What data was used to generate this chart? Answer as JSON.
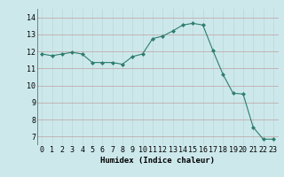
{
  "x": [
    0,
    1,
    2,
    3,
    4,
    5,
    6,
    7,
    8,
    9,
    10,
    11,
    12,
    13,
    14,
    15,
    16,
    17,
    18,
    19,
    20,
    21,
    22,
    23
  ],
  "y": [
    11.85,
    11.75,
    11.85,
    11.95,
    11.85,
    11.35,
    11.35,
    11.35,
    11.25,
    11.7,
    11.85,
    12.75,
    12.9,
    13.2,
    13.55,
    13.65,
    13.55,
    12.05,
    10.65,
    9.55,
    9.5,
    7.55,
    6.85,
    6.85
  ],
  "line_color": "#2e7d6e",
  "marker": "D",
  "marker_size": 2,
  "bg_color": "#cce8eb",
  "grid_color_h": "#c0a0a0",
  "grid_color_v": "#b8d8d8",
  "xlabel": "Humidex (Indice chaleur)",
  "ylim": [
    6.5,
    14.5
  ],
  "xlim": [
    -0.5,
    23.5
  ],
  "yticks": [
    7,
    8,
    9,
    10,
    11,
    12,
    13,
    14
  ],
  "xticks": [
    0,
    1,
    2,
    3,
    4,
    5,
    6,
    7,
    8,
    9,
    10,
    11,
    12,
    13,
    14,
    15,
    16,
    17,
    18,
    19,
    20,
    21,
    22,
    23
  ],
  "label_fontsize": 6.5,
  "tick_fontsize": 6.0
}
